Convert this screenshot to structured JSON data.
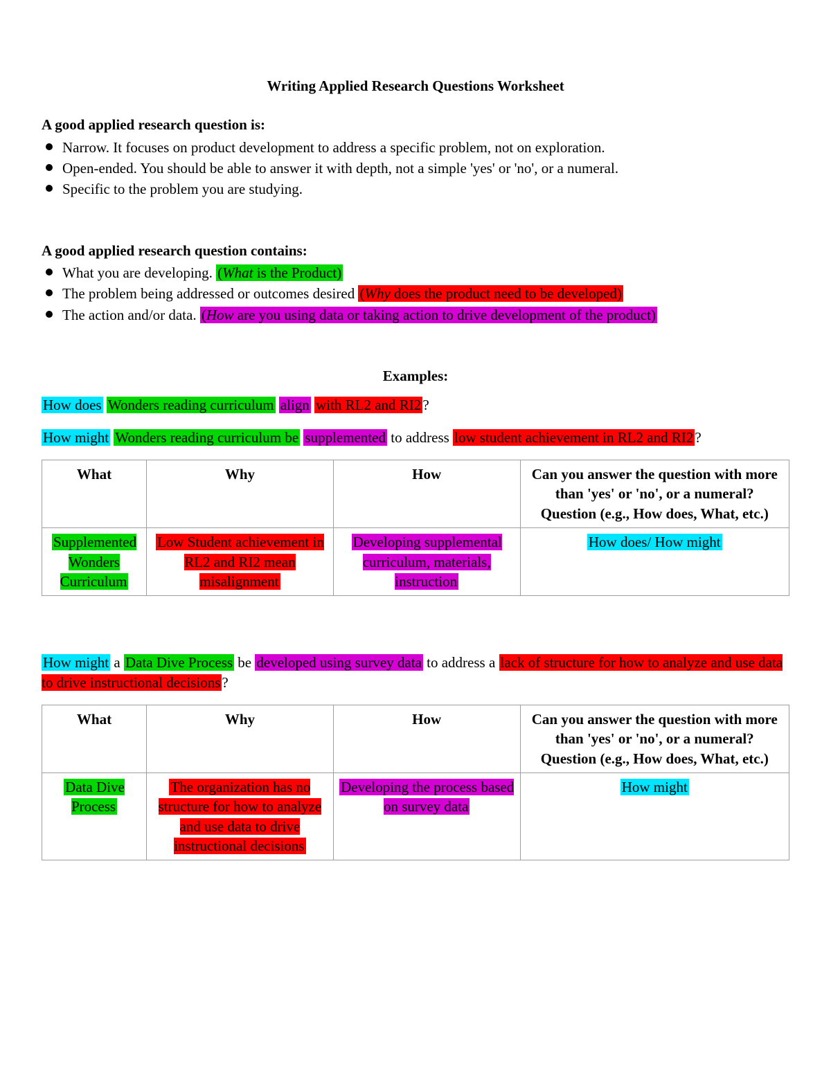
{
  "colors": {
    "cyan": "#00e5ff",
    "green": "#00d600",
    "red": "#ff0000",
    "magenta": "#d400d4",
    "text": "#000000",
    "border": "#9e9e9e",
    "bg": "#ffffff"
  },
  "title": "Writing Applied Research Questions Worksheet",
  "section1_head": "A good applied research question is:",
  "section1_items": [
    "Narrow.  It focuses on product development to address a specific problem, not on exploration.",
    "Open-ended. You should be able to answer it with depth, not a simple 'yes' or 'no', or a numeral.",
    "Specific to the problem you are studying."
  ],
  "section2_head": "A good applied research question contains:",
  "section2_items": [
    {
      "plain": "What you are developing. ",
      "hl_color": "green",
      "hl_parts": [
        {
          "t": "(",
          "it": false
        },
        {
          "t": "What",
          "it": true
        },
        {
          "t": " is the Product)",
          "it": false
        }
      ]
    },
    {
      "plain": "The problem being addressed or outcomes desired ",
      "hl_color": "red",
      "hl_parts": [
        {
          "t": "(",
          "it": false
        },
        {
          "t": "Why",
          "it": true
        },
        {
          "t": " does the product need to be developed)",
          "it": false
        }
      ]
    },
    {
      "plain": "The action and/or data. ",
      "hl_color": "magenta",
      "hl_parts": [
        {
          "t": "(",
          "it": false
        },
        {
          "t": "How",
          "it": true
        },
        {
          "t": " are you using data or taking action to drive development of the product)",
          "it": false
        }
      ]
    }
  ],
  "examples_label": "Examples:",
  "example1_sentence": [
    {
      "t": "How does",
      "c": "cyan"
    },
    {
      "t": " ",
      "c": null
    },
    {
      "t": "Wonders reading curriculum",
      "c": "green"
    },
    {
      "t": " ",
      "c": null
    },
    {
      "t": "align",
      "c": "magenta"
    },
    {
      "t": " ",
      "c": null
    },
    {
      "t": "with RL2 and RI2",
      "c": "red"
    },
    {
      "t": "?",
      "c": null
    }
  ],
  "example2_sentence": [
    {
      "t": "How might",
      "c": "cyan"
    },
    {
      "t": " ",
      "c": null
    },
    {
      "t": "Wonders reading curriculum be",
      "c": "green"
    },
    {
      "t": " ",
      "c": null
    },
    {
      "t": "supplemented",
      "c": "magenta"
    },
    {
      "t": " to address ",
      "c": null
    },
    {
      "t": "low student achievement in RL2 and RI2",
      "c": "red"
    },
    {
      "t": "?",
      "c": null
    }
  ],
  "table_headers": {
    "what": "What",
    "why": "Why",
    "how": "How",
    "ans": "Can you answer the question with more than 'yes' or 'no', or a numeral?\nQuestion (e.g., How does, What, etc.)"
  },
  "table1_row": {
    "what": {
      "t": "Supplemented Wonders Curriculum",
      "c": "green"
    },
    "why": {
      "t": "Low Student achievement in RL2 and RI2 mean misalignment",
      "c": "red"
    },
    "how": {
      "t": "Developing supplemental curriculum, materials, instruction",
      "c": "magenta"
    },
    "ans": {
      "t": "How does/ How might",
      "c": "cyan"
    }
  },
  "example3_sentence": [
    {
      "t": "How might",
      "c": "cyan"
    },
    {
      "t": " a ",
      "c": null
    },
    {
      "t": "Data Dive Process",
      "c": "green"
    },
    {
      "t": " be ",
      "c": null
    },
    {
      "t": "developed using survey data",
      "c": "magenta"
    },
    {
      "t": " to address a ",
      "c": null
    },
    {
      "t": "lack of structure for how to analyze and use data to drive instructional decisions",
      "c": "red"
    },
    {
      "t": "?",
      "c": null
    }
  ],
  "table2_row": {
    "what": {
      "t": "Data Dive Process",
      "c": "green"
    },
    "why": {
      "t": "The organization has no structure for how to analyze and use data to drive instructional decisions",
      "c": "red"
    },
    "how": {
      "t": "Developing the process based on survey data",
      "c": "magenta"
    },
    "ans": {
      "t": "How might",
      "c": "cyan"
    }
  }
}
